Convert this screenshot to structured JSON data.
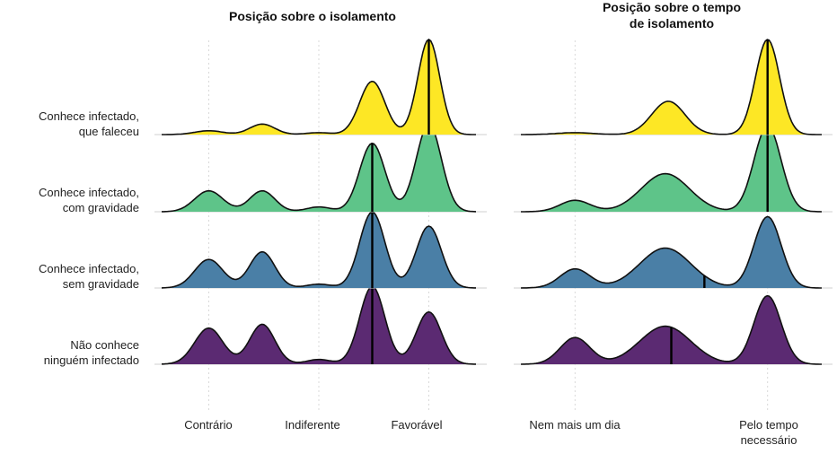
{
  "chart_data": [
    {
      "type": "ridgeline",
      "title": "Posição sobre o isolamento",
      "x_range": [
        0,
        1
      ],
      "x_ticks": [
        {
          "x": 0.15,
          "label": "Contrário"
        },
        {
          "x": 0.5,
          "label": "Indiferente"
        },
        {
          "x": 0.85,
          "label": "Favorável"
        }
      ],
      "series": [
        {
          "name": "Conhece infectado, que faleceu",
          "color": "#FDE725",
          "peaks": [
            {
              "x": 0.15,
              "h": 0.04,
              "w": 0.045
            },
            {
              "x": 0.32,
              "h": 0.11,
              "w": 0.04
            },
            {
              "x": 0.5,
              "h": 0.02,
              "w": 0.04
            },
            {
              "x": 0.67,
              "h": 0.56,
              "w": 0.04
            },
            {
              "x": 0.85,
              "h": 1.0,
              "w": 0.035
            }
          ],
          "median": 0.85
        },
        {
          "name": "Conhece infectado, com gravidade",
          "color": "#5EC489",
          "peaks": [
            {
              "x": 0.15,
              "h": 0.22,
              "w": 0.045
            },
            {
              "x": 0.32,
              "h": 0.22,
              "w": 0.04
            },
            {
              "x": 0.5,
              "h": 0.05,
              "w": 0.04
            },
            {
              "x": 0.67,
              "h": 0.72,
              "w": 0.04
            },
            {
              "x": 0.85,
              "h": 0.92,
              "w": 0.04
            }
          ],
          "median": 0.67
        },
        {
          "name": "Conhece infectado, sem gravidade",
          "color": "#4A7FA6",
          "peaks": [
            {
              "x": 0.15,
              "h": 0.3,
              "w": 0.045
            },
            {
              "x": 0.32,
              "h": 0.38,
              "w": 0.04
            },
            {
              "x": 0.5,
              "h": 0.04,
              "w": 0.04
            },
            {
              "x": 0.67,
              "h": 0.8,
              "w": 0.04
            },
            {
              "x": 0.85,
              "h": 0.65,
              "w": 0.04
            }
          ],
          "median": 0.67
        },
        {
          "name": "Não conhece ninguém infectado",
          "color": "#5B2A72",
          "peaks": [
            {
              "x": 0.15,
              "h": 0.38,
              "w": 0.045
            },
            {
              "x": 0.32,
              "h": 0.42,
              "w": 0.04
            },
            {
              "x": 0.5,
              "h": 0.05,
              "w": 0.04
            },
            {
              "x": 0.67,
              "h": 0.82,
              "w": 0.04
            },
            {
              "x": 0.85,
              "h": 0.55,
              "w": 0.04
            }
          ],
          "median": 0.67
        }
      ]
    },
    {
      "type": "ridgeline",
      "title": "Posição sobre o tempo de isolamento",
      "x_range": [
        0,
        1
      ],
      "x_ticks": [
        {
          "x": 0.18,
          "label": "Nem mais um dia"
        },
        {
          "x": 0.82,
          "label": "Pelo tempo necessário"
        }
      ],
      "series": [
        {
          "name": "Conhece infectado, que faleceu",
          "color": "#FDE725",
          "peaks": [
            {
              "x": 0.18,
              "h": 0.02,
              "w": 0.06
            },
            {
              "x": 0.49,
              "h": 0.35,
              "w": 0.055
            },
            {
              "x": 0.82,
              "h": 1.0,
              "w": 0.04
            }
          ],
          "median": 0.82
        },
        {
          "name": "Conhece infectado, com gravidade",
          "color": "#5EC489",
          "peaks": [
            {
              "x": 0.18,
              "h": 0.12,
              "w": 0.05
            },
            {
              "x": 0.48,
              "h": 0.4,
              "w": 0.08
            },
            {
              "x": 0.82,
              "h": 0.9,
              "w": 0.045
            }
          ],
          "median": 0.82
        },
        {
          "name": "Conhece infectado, sem gravidade",
          "color": "#4A7FA6",
          "peaks": [
            {
              "x": 0.18,
              "h": 0.2,
              "w": 0.05
            },
            {
              "x": 0.48,
              "h": 0.42,
              "w": 0.085
            },
            {
              "x": 0.82,
              "h": 0.75,
              "w": 0.045
            }
          ],
          "median": 0.61
        },
        {
          "name": "Não conhece ninguém infectado",
          "color": "#5B2A72",
          "peaks": [
            {
              "x": 0.18,
              "h": 0.28,
              "w": 0.05
            },
            {
              "x": 0.48,
              "h": 0.4,
              "w": 0.085
            },
            {
              "x": 0.82,
              "h": 0.72,
              "w": 0.045
            }
          ],
          "median": 0.5
        }
      ]
    }
  ],
  "row_labels": [
    {
      "line1": "Conhece infectado,",
      "line2": "que faleceu"
    },
    {
      "line1": "Conhece infectado,",
      "line2": "com gravidade"
    },
    {
      "line1": "Conhece infectado,",
      "line2": "sem gravidade"
    },
    {
      "line1": "Não conhece",
      "line2": "ninguém infectado"
    }
  ],
  "panel_titles": {
    "left": "Posição sobre o isolamento",
    "right_line1": "Posição sobre o tempo",
    "right_line2": "de isolamento"
  },
  "tick_labels": {
    "left_1": "Contrário",
    "left_2": "Indiferente",
    "left_3": "Favorável",
    "right_1": "Nem mais um dia",
    "right_2_line1": "Pelo tempo",
    "right_2_line2": "necessário"
  }
}
